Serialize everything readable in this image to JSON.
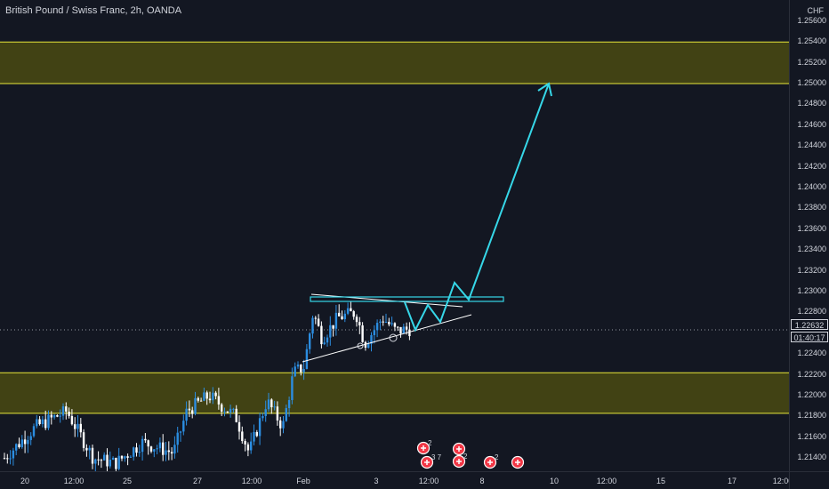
{
  "legend": {
    "symbol_text": "British Pound / Swiss Franc, 2h, OANDA"
  },
  "price_axis": {
    "unit": "CHF",
    "ticks": [
      "1.25600",
      "1.25400",
      "1.25200",
      "1.25000",
      "1.24800",
      "1.24600",
      "1.24400",
      "1.24200",
      "1.24000",
      "1.23800",
      "1.23600",
      "1.23400",
      "1.23200",
      "1.23000",
      "1.22800",
      "1.22400",
      "1.22200",
      "1.22000",
      "1.21800",
      "1.21600",
      "1.21400"
    ],
    "current_price": "1.22632",
    "countdown": "01:40:17"
  },
  "time_axis": {
    "labels": [
      "20",
      "12:00",
      "25",
      "27",
      "12:00",
      "Feb",
      "3",
      "12:00",
      "8",
      "10",
      "12:00",
      "15",
      "17",
      "12:00"
    ]
  },
  "zones": [
    {
      "name": "resistance-zone",
      "top": 1.254,
      "bottom": 1.25
    },
    {
      "name": "support-zone",
      "top": 1.2222,
      "bottom": 1.2183
    }
  ],
  "colors": {
    "background": "#131722",
    "zone_fill": "#4a4a12",
    "zone_border": "#e8e83a",
    "candle_up": "#2b8de0",
    "candle_down": "#ffffff",
    "arrow": "#36d7e8",
    "triangle": "#ffffff"
  },
  "events": [
    {
      "icon": "economic-event-flag-icon",
      "count": "2"
    },
    {
      "icon": "economic-event-flag-icon",
      "count": ""
    },
    {
      "icon": "economic-event-flag-icon",
      "count": "3 7"
    },
    {
      "icon": "economic-event-flag-icon",
      "count": "2"
    },
    {
      "icon": "economic-event-flag-icon",
      "count": "2"
    },
    {
      "icon": "uk-event-flag-icon",
      "count": ""
    }
  ]
}
